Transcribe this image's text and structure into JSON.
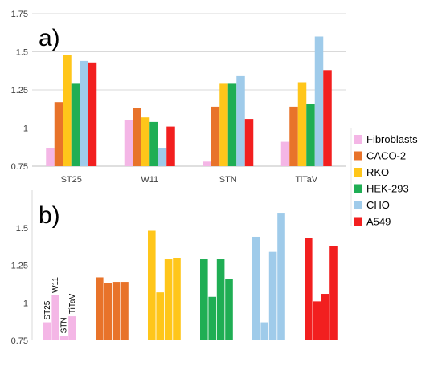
{
  "chart_data": [
    {
      "type": "bar",
      "panel_label": "a)",
      "categories": [
        "ST25",
        "W11",
        "STN",
        "TiTaV"
      ],
      "ylim": [
        0.75,
        1.75
      ],
      "yticks": [
        "0.75",
        "1",
        "1.25",
        "1.5",
        "1.75"
      ],
      "grid": true,
      "series": [
        {
          "name": "Fibroblasts",
          "color": "#f4b6e6",
          "values": [
            0.87,
            1.05,
            0.78,
            0.91
          ]
        },
        {
          "name": "CACO-2",
          "color": "#e8732a",
          "values": [
            1.17,
            1.13,
            1.14,
            1.14
          ]
        },
        {
          "name": "RKO",
          "color": "#ffc61a",
          "values": [
            1.48,
            1.07,
            1.29,
            1.3
          ]
        },
        {
          "name": "HEK-293",
          "color": "#1fae54",
          "values": [
            1.29,
            1.04,
            1.29,
            1.16
          ]
        },
        {
          "name": "CHO",
          "color": "#9fcbea",
          "values": [
            1.44,
            0.87,
            1.34,
            1.6
          ]
        },
        {
          "name": "A549",
          "color": "#f21f1f",
          "values": [
            1.43,
            1.01,
            1.06,
            1.38
          ]
        }
      ]
    },
    {
      "type": "bar",
      "panel_label": "b)",
      "groups": [
        "Fibroblasts",
        "CACO-2",
        "RKO",
        "HEK-293",
        "CHO",
        "A549"
      ],
      "bar_labels": [
        "ST25",
        "W11",
        "STN",
        "TiTaV"
      ],
      "ylim": [
        0.75,
        1.75
      ],
      "yticks": [
        "0.75",
        "1",
        "1.25",
        "1.5"
      ],
      "grid": false
    }
  ],
  "legend": {
    "placement": "right",
    "entries": [
      "Fibroblasts",
      "CACO-2",
      "RKO",
      "HEK-293",
      "CHO",
      "A549"
    ]
  }
}
